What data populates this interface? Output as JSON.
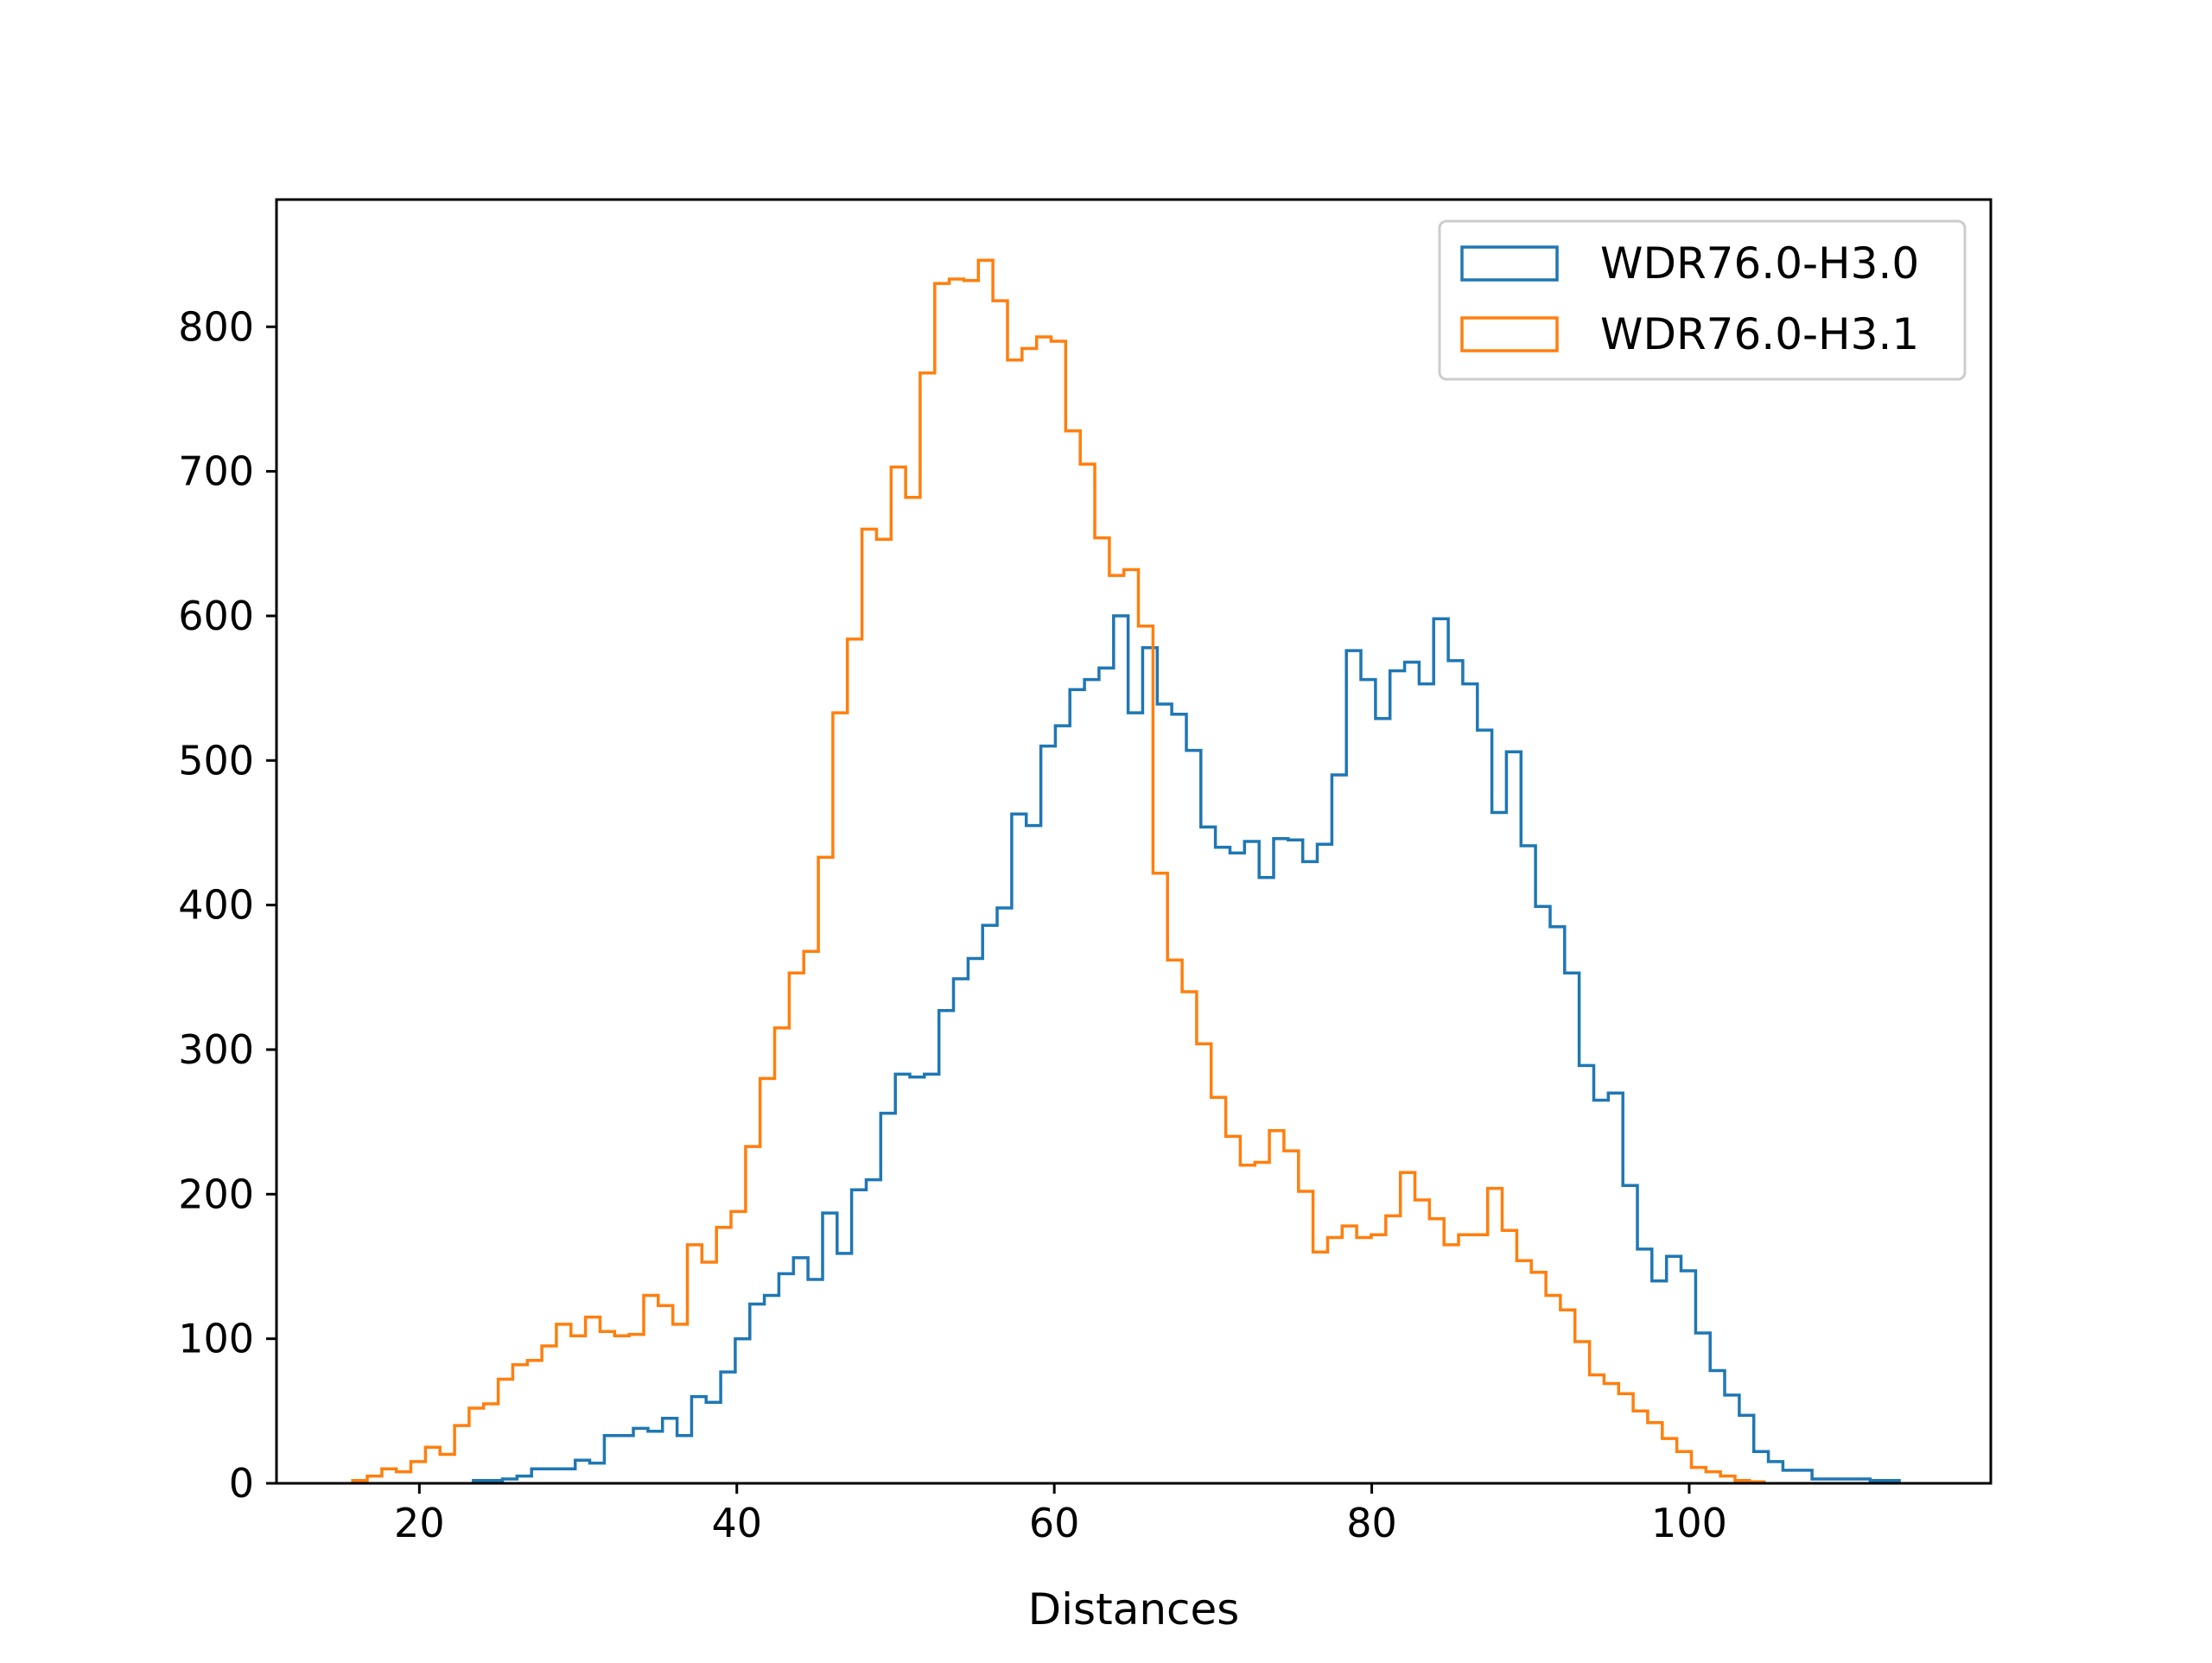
{
  "chart_data": {
    "type": "histogram",
    "title": "",
    "xlabel": "Distances",
    "ylabel": "",
    "xlim": [
      11.0,
      119.0
    ],
    "ylim": [
      0,
      888
    ],
    "xticks": [
      20,
      40,
      60,
      80,
      100
    ],
    "yticks": [
      0,
      100,
      200,
      300,
      400,
      500,
      600,
      700,
      800
    ],
    "grid": false,
    "legend_position": "upper right",
    "bin_width": 0.9167,
    "series": [
      {
        "name": "WDR76.0-H3.0",
        "color": "#1f77b4",
        "x_start": 23.4,
        "counts": [
          2,
          2,
          3,
          5,
          10,
          10,
          10,
          16,
          14,
          33,
          33,
          38,
          36,
          45,
          33,
          60,
          56,
          77,
          100,
          124,
          130,
          145,
          156,
          141,
          187,
          159,
          203,
          210,
          256,
          283,
          281,
          283,
          327,
          349,
          363,
          386,
          398,
          463,
          455,
          510,
          524,
          549,
          556,
          564,
          600,
          533,
          578,
          539,
          532,
          507,
          454,
          440,
          436,
          444,
          419,
          446,
          445,
          430,
          442,
          490,
          576,
          556,
          529,
          562,
          568,
          553,
          598,
          569,
          553,
          521,
          464,
          506,
          441,
          399,
          385,
          353,
          289,
          265,
          270,
          206,
          162,
          140,
          157,
          147,
          104,
          78,
          61,
          47,
          22,
          15,
          9,
          9,
          3,
          3,
          3,
          3,
          2,
          2
        ]
      },
      {
        "name": "WDR76.0-H3.1",
        "color": "#ff7f0e",
        "x_start": 15.8,
        "counts": [
          2,
          5,
          10,
          8,
          15,
          25,
          20,
          40,
          52,
          55,
          72,
          82,
          85,
          95,
          110,
          102,
          115,
          105,
          102,
          103,
          130,
          123,
          110,
          165,
          153,
          177,
          188,
          233,
          280,
          315,
          353,
          368,
          433,
          533,
          584,
          660,
          653,
          703,
          682,
          768,
          830,
          833,
          832,
          846,
          818,
          777,
          785,
          793,
          790,
          728,
          705,
          654,
          628,
          632,
          593,
          422,
          362,
          340,
          304,
          267,
          240,
          220,
          222,
          244,
          230,
          202,
          160,
          170,
          178,
          170,
          172,
          185,
          215,
          196,
          183,
          165,
          172,
          172,
          204,
          175,
          154,
          146,
          130,
          120,
          98,
          75,
          69,
          62,
          50,
          42,
          31,
          22,
          11,
          8,
          5,
          2,
          1
        ]
      }
    ]
  }
}
